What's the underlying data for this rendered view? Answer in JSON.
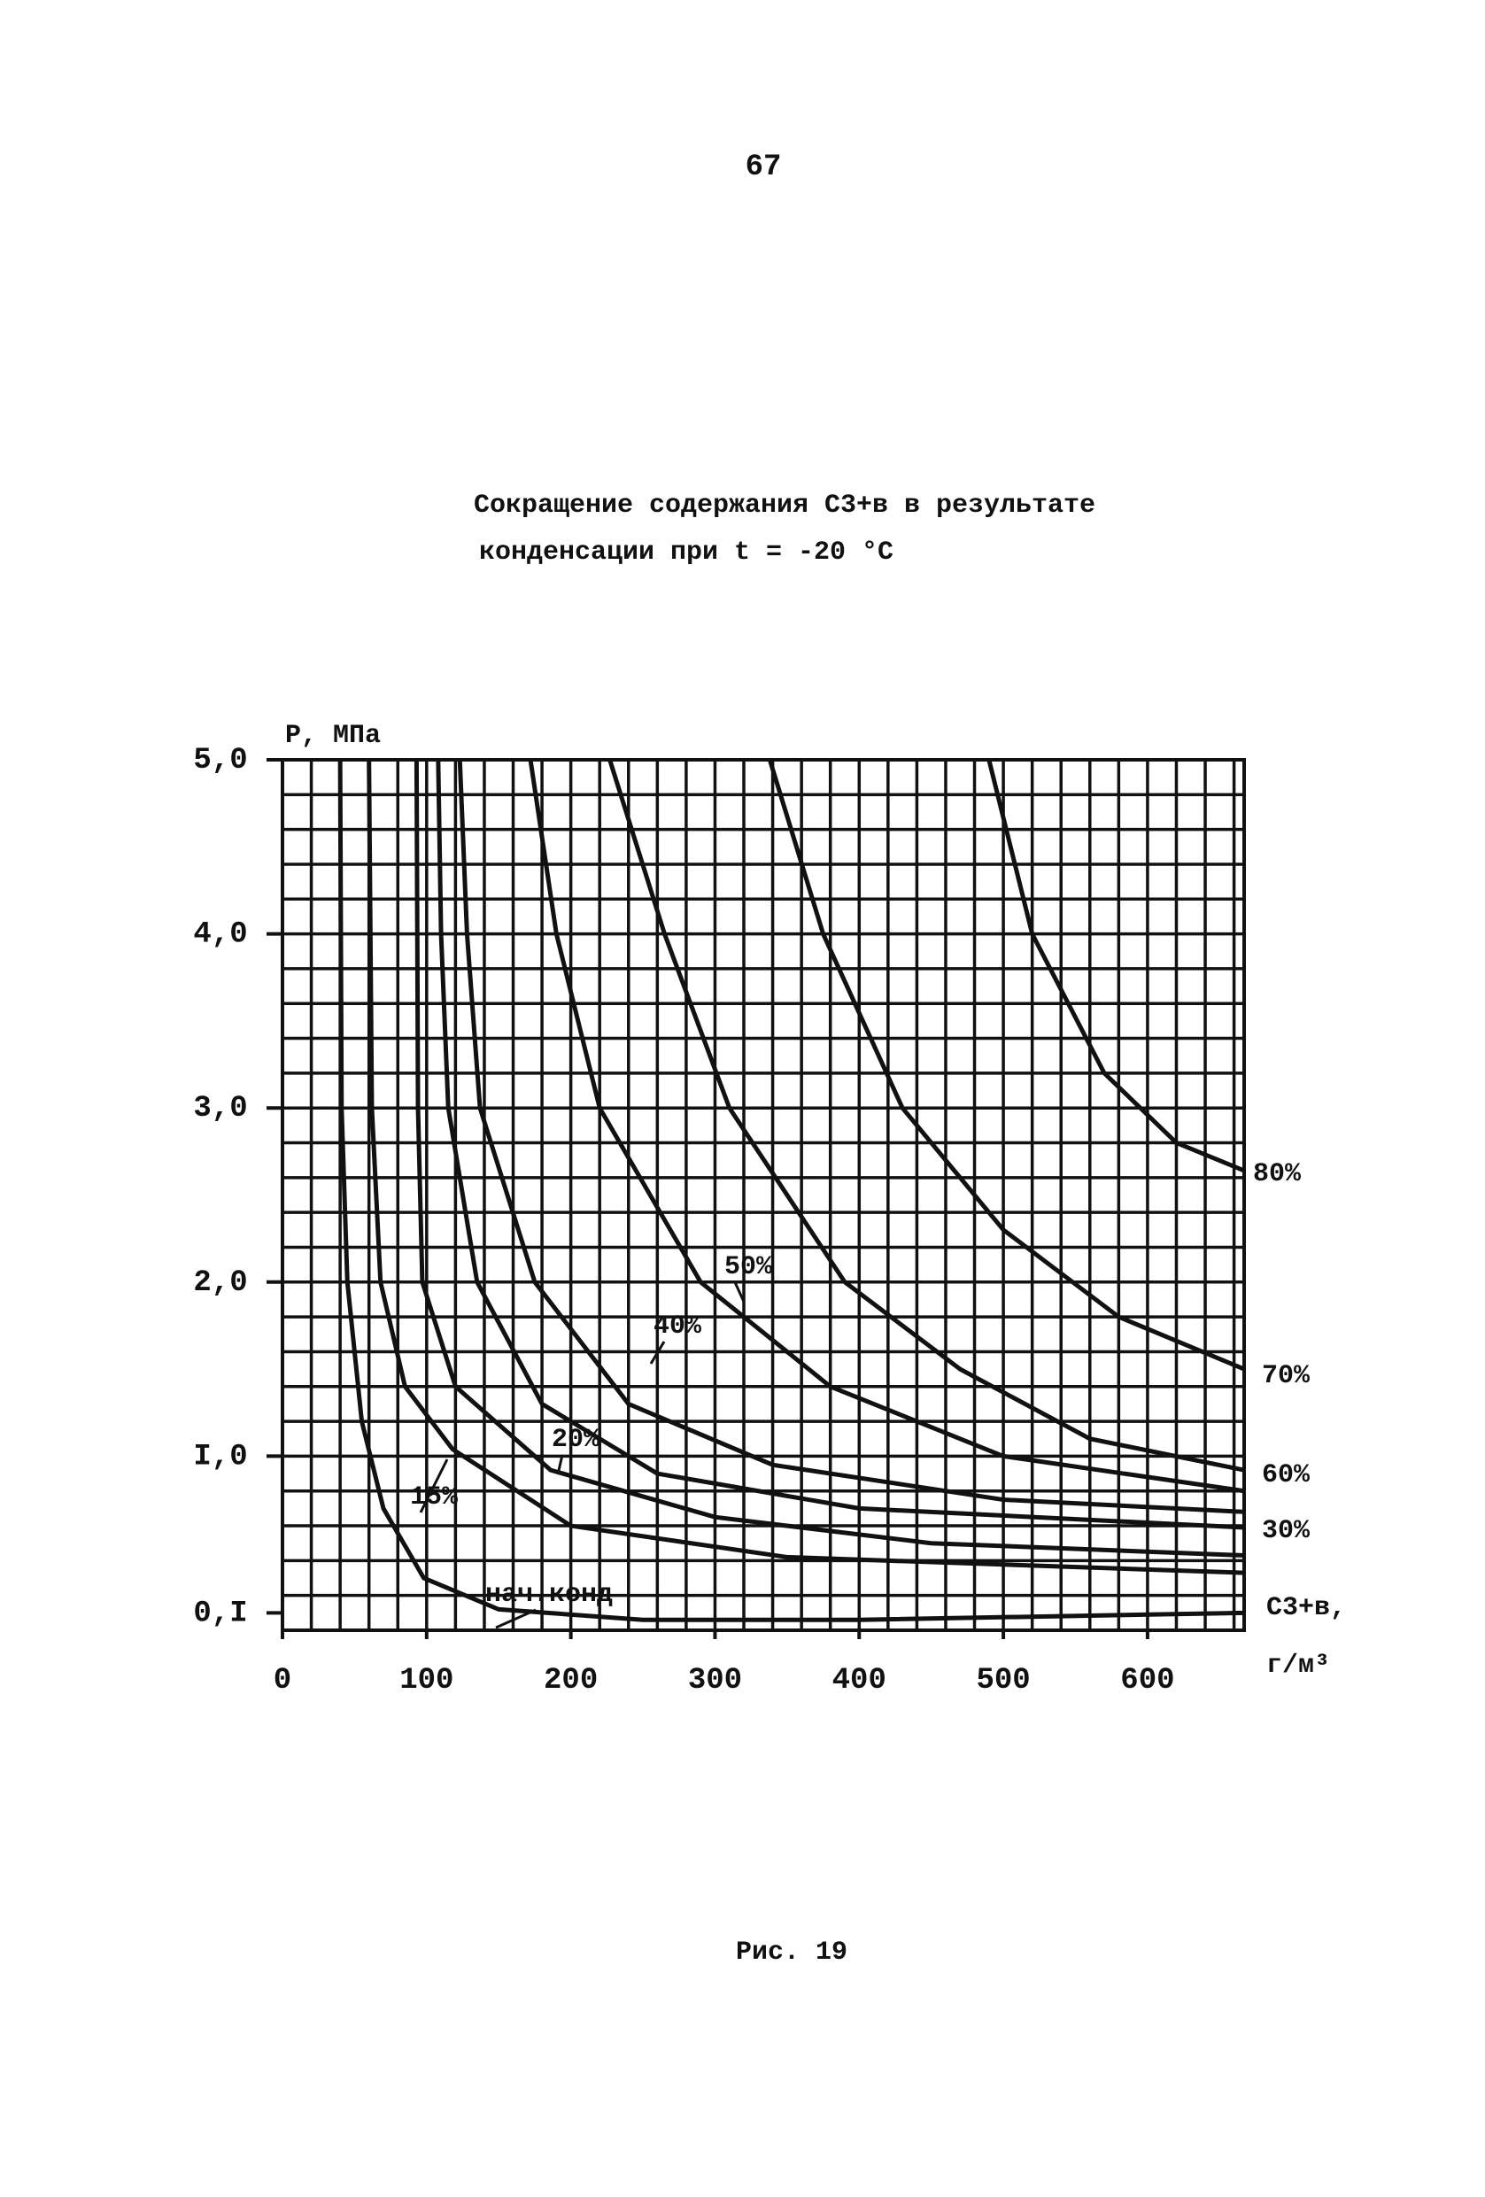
{
  "page_number": "67",
  "caption": "Рис. 19",
  "chart_data": {
    "type": "line",
    "title": [
      "Сокращение содержания C3+в в результате",
      "конденсации при t = -20 °C"
    ],
    "ylabel": "P, МПа",
    "xlabel": [
      "C3+в,",
      "г/м³"
    ],
    "xlim": [
      0,
      667
    ],
    "ylim": [
      0,
      5
    ],
    "xticks": [
      0,
      100,
      200,
      300,
      400,
      500,
      600
    ],
    "yticks": [
      {
        "value": 5,
        "label": "5,0"
      },
      {
        "value": 4,
        "label": "4,0"
      },
      {
        "value": 3,
        "label": "3,0"
      },
      {
        "value": 2,
        "label": "2,0"
      },
      {
        "value": 1,
        "label": "I,0"
      },
      {
        "value": 0.1,
        "label": "0,I"
      }
    ],
    "grid": true,
    "xgrid": [
      0,
      20,
      40,
      60,
      80,
      100,
      120,
      140,
      160,
      180,
      200,
      220,
      240,
      260,
      280,
      300,
      320,
      340,
      360,
      380,
      400,
      420,
      440,
      460,
      480,
      500,
      520,
      540,
      560,
      580,
      600,
      620,
      640,
      660
    ],
    "ygrid": [
      0,
      0.2,
      0.4,
      0.6,
      0.8,
      1,
      1.2,
      1.4,
      1.6,
      1.8,
      2,
      2.2,
      2.4,
      2.6,
      2.8,
      3,
      3.2,
      3.4,
      3.6,
      3.8,
      4,
      4.2,
      4.4,
      4.6,
      4.8,
      5
    ],
    "series": [
      {
        "name": "нач.конд",
        "color": "#111111",
        "x": [
          40,
          41,
          45,
          55,
          70,
          98,
          150,
          250,
          400,
          667
        ],
        "values": [
          5,
          3,
          2,
          1.2,
          0.7,
          0.3,
          0.12,
          0.06,
          0.06,
          0.1
        ]
      },
      {
        "name": "15%",
        "color": "#111111",
        "x": [
          60,
          62,
          68,
          85,
          118,
          200,
          350,
          667
        ],
        "values": [
          5,
          3,
          2,
          1.4,
          1.04,
          0.6,
          0.42,
          0.33
        ]
      },
      {
        "name": "20%",
        "color": "#111111",
        "x": [
          93,
          94,
          97,
          120,
          186,
          300,
          450,
          667
        ],
        "values": [
          5,
          3,
          2,
          1.4,
          0.92,
          0.65,
          0.5,
          0.43
        ]
      },
      {
        "name": "30%",
        "color": "#111111",
        "x": [
          108,
          110,
          115,
          135,
          180,
          260,
          400,
          667
        ],
        "values": [
          5,
          4,
          3,
          2,
          1.3,
          0.9,
          0.7,
          0.59
        ]
      },
      {
        "name": "40%",
        "color": "#111111",
        "x": [
          123,
          128,
          137,
          175,
          240,
          340,
          500,
          667
        ],
        "values": [
          5,
          4,
          3,
          2,
          1.3,
          0.95,
          0.75,
          0.68
        ]
      },
      {
        "name": "50%",
        "color": "#111111",
        "x": [
          172,
          190,
          220,
          290,
          380,
          500,
          667
        ],
        "values": [
          5,
          4,
          3,
          2,
          1.4,
          1.0,
          0.8
        ]
      },
      {
        "name": "60%",
        "color": "#111111",
        "x": [
          227,
          265,
          310,
          390,
          470,
          560,
          667
        ],
        "values": [
          5,
          4,
          3,
          2,
          1.5,
          1.1,
          0.92
        ]
      },
      {
        "name": "70%",
        "color": "#111111",
        "x": [
          338,
          375,
          430,
          500,
          580,
          667
        ],
        "values": [
          5,
          4,
          3,
          2.3,
          1.8,
          1.5
        ]
      },
      {
        "name": "80%",
        "color": "#111111",
        "x": [
          490,
          520,
          570,
          620,
          667
        ],
        "values": [
          5,
          4,
          3.2,
          2.8,
          2.64
        ]
      }
    ]
  }
}
